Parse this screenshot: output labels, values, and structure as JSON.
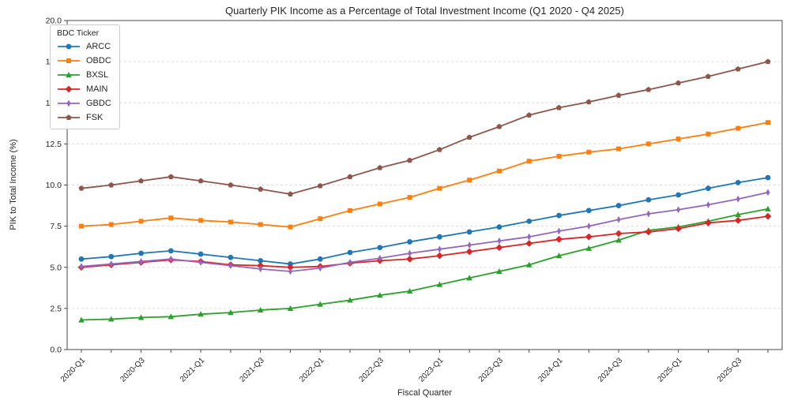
{
  "chart_data": {
    "type": "line",
    "title": "Quarterly PIK Income as a Percentage of Total Investment Income (Q1 2020 - Q4 2025)",
    "xlabel": "Fiscal Quarter",
    "ylabel": "PIK to Total Income (%)",
    "ylim": [
      0,
      20
    ],
    "ytick_step": 2.5,
    "ytick_labels": [
      "0.0",
      "2.5",
      "5.0",
      "7.5",
      "10.0",
      "12.5",
      "15.0",
      "17.5",
      "20.0"
    ],
    "grid": "horizontal-dashed",
    "legend": {
      "title": "BDC Ticker",
      "position": "upper-left"
    },
    "x": [
      "2020-Q1",
      "2020-Q2",
      "2020-Q3",
      "2020-Q4",
      "2021-Q1",
      "2021-Q2",
      "2021-Q3",
      "2021-Q4",
      "2022-Q1",
      "2022-Q2",
      "2022-Q3",
      "2022-Q4",
      "2023-Q1",
      "2023-Q2",
      "2023-Q3",
      "2023-Q4",
      "2024-Q1",
      "2024-Q2",
      "2024-Q3",
      "2024-Q4",
      "2025-Q1",
      "2025-Q2",
      "2025-Q3",
      "2025-Q4"
    ],
    "x_labeled_every": 2,
    "series": [
      {
        "name": "ARCC",
        "color": "#1f77b4",
        "marker": "circle",
        "values": [
          5.5,
          5.65,
          5.85,
          6.0,
          5.8,
          5.6,
          5.4,
          5.2,
          5.5,
          5.9,
          6.2,
          6.55,
          6.85,
          7.15,
          7.45,
          7.8,
          8.15,
          8.45,
          8.75,
          9.1,
          9.4,
          9.8,
          10.15,
          10.45
        ]
      },
      {
        "name": "OBDC",
        "color": "#ff7f0e",
        "marker": "square",
        "values": [
          7.5,
          7.6,
          7.8,
          8.0,
          7.85,
          7.75,
          7.6,
          7.45,
          7.95,
          8.45,
          8.85,
          9.25,
          9.8,
          10.3,
          10.85,
          11.45,
          11.75,
          12.0,
          12.2,
          12.5,
          12.8,
          13.1,
          13.45,
          13.8
        ]
      },
      {
        "name": "BXSL",
        "color": "#2ca02c",
        "marker": "triangle-up",
        "values": [
          1.8,
          1.85,
          1.95,
          2.0,
          2.15,
          2.25,
          2.4,
          2.5,
          2.75,
          3.0,
          3.3,
          3.55,
          3.95,
          4.35,
          4.75,
          5.15,
          5.7,
          6.15,
          6.65,
          7.25,
          7.45,
          7.8,
          8.2,
          8.55
        ]
      },
      {
        "name": "MAIN",
        "color": "#d62728",
        "marker": "diamond",
        "values": [
          5.0,
          5.15,
          5.3,
          5.45,
          5.35,
          5.15,
          5.1,
          5.0,
          5.05,
          5.25,
          5.4,
          5.5,
          5.7,
          5.95,
          6.2,
          6.45,
          6.7,
          6.85,
          7.05,
          7.15,
          7.35,
          7.7,
          7.85,
          8.1
        ]
      },
      {
        "name": "GBDC",
        "color": "#9467bd",
        "marker": "thin-diamond",
        "values": [
          5.05,
          5.2,
          5.35,
          5.5,
          5.3,
          5.1,
          4.9,
          4.75,
          4.95,
          5.3,
          5.55,
          5.85,
          6.1,
          6.35,
          6.6,
          6.85,
          7.2,
          7.5,
          7.9,
          8.25,
          8.5,
          8.8,
          9.15,
          9.55
        ]
      },
      {
        "name": "FSK",
        "color": "#8c564b",
        "marker": "pentagon",
        "values": [
          9.8,
          10.0,
          10.25,
          10.5,
          10.25,
          10.0,
          9.75,
          9.45,
          9.95,
          10.5,
          11.05,
          11.5,
          12.15,
          12.9,
          13.55,
          14.25,
          14.7,
          15.05,
          15.45,
          15.8,
          16.2,
          16.6,
          17.05,
          17.5
        ]
      }
    ]
  }
}
